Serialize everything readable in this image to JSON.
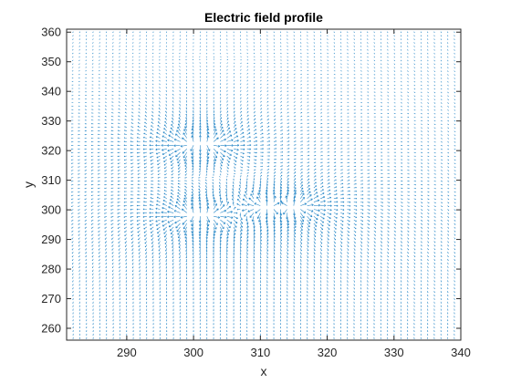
{
  "chart_data": {
    "type": "quiver",
    "title": "Electric field profile",
    "xlabel": "x",
    "ylabel": "y",
    "xlim": [
      281,
      340
    ],
    "ylim": [
      256,
      361
    ],
    "xticks": [
      290,
      300,
      310,
      320,
      330,
      340
    ],
    "yticks": [
      260,
      270,
      280,
      290,
      300,
      310,
      320,
      330,
      340,
      350,
      360
    ],
    "grid": false,
    "legend": "none",
    "series_color": "#0072BD",
    "field_sampling": {
      "x_range": [
        281,
        340
      ],
      "y_range": [
        256,
        361
      ],
      "x_step": 1,
      "y_step": 1.2
    },
    "charges": [
      {
        "x": 300,
        "y": 322,
        "q": 1
      },
      {
        "x": 302,
        "y": 322,
        "q": 1
      },
      {
        "x": 300,
        "y": 298,
        "q": 1
      },
      {
        "x": 302,
        "y": 298,
        "q": 1
      },
      {
        "x": 311,
        "y": 301,
        "q": 1
      },
      {
        "x": 315,
        "y": 301,
        "q": 1
      }
    ],
    "background_field": {
      "ex": 0.0,
      "ey": -0.15
    }
  }
}
